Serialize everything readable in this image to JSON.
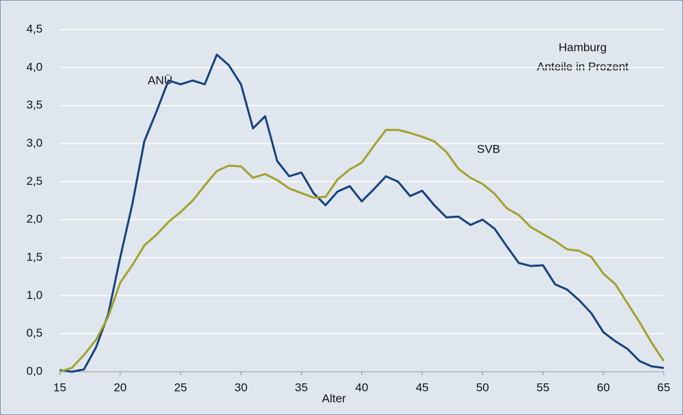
{
  "chart_data": {
    "type": "line",
    "x": [
      15,
      16,
      17,
      18,
      19,
      20,
      21,
      22,
      23,
      24,
      25,
      26,
      27,
      28,
      29,
      30,
      31,
      32,
      33,
      34,
      35,
      36,
      37,
      38,
      39,
      40,
      41,
      42,
      43,
      44,
      45,
      46,
      47,
      48,
      49,
      50,
      51,
      52,
      53,
      54,
      55,
      56,
      57,
      58,
      59,
      60,
      61,
      62,
      63,
      64,
      65
    ],
    "series": [
      {
        "name": "ANÜ",
        "color": "#15427f",
        "values": [
          0.02,
          0.0,
          0.03,
          0.32,
          0.75,
          1.5,
          2.2,
          3.03,
          3.42,
          3.83,
          3.78,
          3.83,
          3.78,
          4.17,
          4.03,
          3.78,
          3.2,
          3.36,
          2.77,
          2.57,
          2.62,
          2.35,
          2.19,
          2.37,
          2.44,
          2.24,
          2.4,
          2.57,
          2.5,
          2.31,
          2.38,
          2.19,
          2.03,
          2.04,
          1.93,
          2.0,
          1.88,
          1.65,
          1.43,
          1.39,
          1.4,
          1.15,
          1.08,
          0.94,
          0.77,
          0.52,
          0.4,
          0.3,
          0.14,
          0.07,
          0.05
        ]
      },
      {
        "name": "SVB",
        "color": "#a3a12c",
        "values": [
          0.0,
          0.05,
          0.22,
          0.42,
          0.72,
          1.17,
          1.4,
          1.66,
          1.8,
          1.97,
          2.1,
          2.25,
          2.45,
          2.64,
          2.71,
          2.7,
          2.55,
          2.6,
          2.52,
          2.41,
          2.35,
          2.29,
          2.3,
          2.53,
          2.66,
          2.75,
          2.97,
          3.18,
          3.18,
          3.14,
          3.09,
          3.03,
          2.89,
          2.67,
          2.55,
          2.47,
          2.34,
          2.15,
          2.06,
          1.9,
          1.81,
          1.72,
          1.61,
          1.59,
          1.51,
          1.29,
          1.15,
          0.9,
          0.65,
          0.38,
          0.14
        ]
      }
    ],
    "x_label": "Alter",
    "annotations": [
      "Hamburg",
      "Anteile in Prozent"
    ],
    "xlim": [
      15,
      65
    ],
    "xticks": [
      15,
      20,
      25,
      30,
      35,
      40,
      45,
      50,
      55,
      60,
      65
    ],
    "ylim": [
      0,
      4.5
    ],
    "yticks": [
      {
        "value": 0,
        "label": "0,0"
      },
      {
        "value": 0.5,
        "label": "0,5"
      },
      {
        "value": 1,
        "label": "1,0"
      },
      {
        "value": 1.5,
        "label": "1,5"
      },
      {
        "value": 2,
        "label": "2,0"
      },
      {
        "value": 2.5,
        "label": "2,5"
      },
      {
        "value": 3,
        "label": "3,0"
      },
      {
        "value": 3.5,
        "label": "3,5"
      },
      {
        "value": 4,
        "label": "4,0"
      },
      {
        "value": 4.5,
        "label": "4,5"
      }
    ],
    "grid": true
  }
}
